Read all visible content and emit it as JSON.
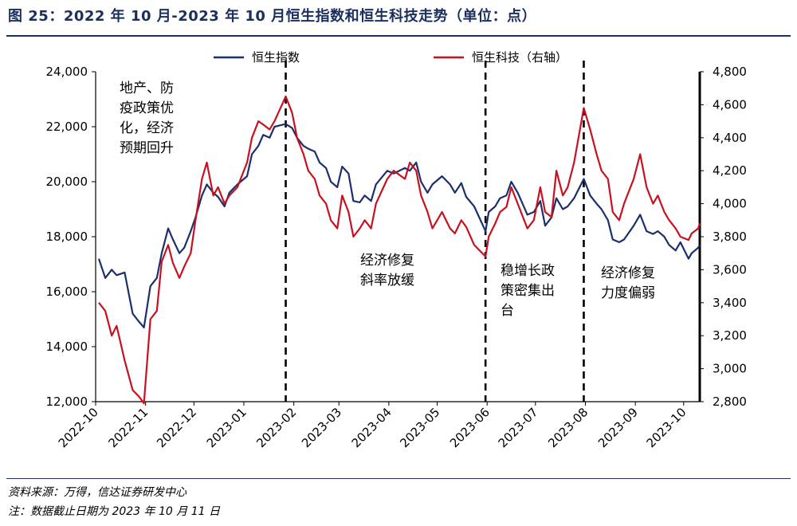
{
  "header": {
    "title": "图 25：2022 年 10 月-2023 年 10 月恒生指数和恒生科技走势（单位：点）"
  },
  "footer": {
    "source": "资料来源：万得，信达证券研发中心",
    "note": "注：数据截止日期为 2023 年 10 月 11 日"
  },
  "chart_data": {
    "type": "line",
    "title": "",
    "xlabel": "",
    "ylabel": "",
    "x_ticks": [
      "2022-10",
      "2022-11",
      "2022-12",
      "2023-01",
      "2023-02",
      "2023-03",
      "2023-04",
      "2023-05",
      "2023-06",
      "2023-07",
      "2023-08",
      "2023-09",
      "2023-10"
    ],
    "x_range": [
      "2022-10-01",
      "2023-10-11"
    ],
    "y_left": {
      "ticks": [
        "12,000",
        "14,000",
        "16,000",
        "18,000",
        "20,000",
        "22,000",
        "24,000"
      ],
      "range": [
        12000,
        24000
      ]
    },
    "y_right": {
      "ticks": [
        "2,800",
        "3,000",
        "3,200",
        "3,400",
        "3,600",
        "3,800",
        "4,000",
        "4,200",
        "4,400",
        "4,600",
        "4,800"
      ],
      "range": [
        2800,
        4800
      ]
    },
    "legend": {
      "placement": "top"
    },
    "grid": false,
    "series": [
      {
        "name": "恒生指数",
        "axis": "left",
        "color": "#1b2f6e",
        "points": [
          [
            "2022-10-03",
            17200
          ],
          [
            "2022-10-07",
            16500
          ],
          [
            "2022-10-11",
            16800
          ],
          [
            "2022-10-14",
            16600
          ],
          [
            "2022-10-19",
            16700
          ],
          [
            "2022-10-24",
            15200
          ],
          [
            "2022-10-28",
            14900
          ],
          [
            "2022-10-31",
            14700
          ],
          [
            "2022-11-04",
            16200
          ],
          [
            "2022-11-08",
            16500
          ],
          [
            "2022-11-11",
            17400
          ],
          [
            "2022-11-15",
            18300
          ],
          [
            "2022-11-18",
            17900
          ],
          [
            "2022-11-22",
            17400
          ],
          [
            "2022-11-25",
            17600
          ],
          [
            "2022-11-29",
            18200
          ],
          [
            "2022-12-02",
            18700
          ],
          [
            "2022-12-06",
            19500
          ],
          [
            "2022-12-09",
            19900
          ],
          [
            "2022-12-13",
            19600
          ],
          [
            "2022-12-16",
            19450
          ],
          [
            "2022-12-20",
            19100
          ],
          [
            "2022-12-23",
            19600
          ],
          [
            "2022-12-28",
            19900
          ],
          [
            "2023-01-03",
            20200
          ],
          [
            "2023-01-06",
            21000
          ],
          [
            "2023-01-10",
            21300
          ],
          [
            "2023-01-13",
            21700
          ],
          [
            "2023-01-17",
            21600
          ],
          [
            "2023-01-20",
            22000
          ],
          [
            "2023-01-27",
            22100
          ],
          [
            "2023-01-31",
            21950
          ],
          [
            "2023-02-03",
            21600
          ],
          [
            "2023-02-07",
            21300
          ],
          [
            "2023-02-10",
            21200
          ],
          [
            "2023-02-14",
            21100
          ],
          [
            "2023-02-17",
            20700
          ],
          [
            "2023-02-21",
            20500
          ],
          [
            "2023-02-24",
            20000
          ],
          [
            "2023-02-28",
            19800
          ],
          [
            "2023-03-03",
            20550
          ],
          [
            "2023-03-07",
            20300
          ],
          [
            "2023-03-10",
            19300
          ],
          [
            "2023-03-14",
            19250
          ],
          [
            "2023-03-17",
            19500
          ],
          [
            "2023-03-21",
            19300
          ],
          [
            "2023-03-24",
            19900
          ],
          [
            "2023-03-31",
            20400
          ],
          [
            "2023-04-04",
            20300
          ],
          [
            "2023-04-11",
            20500
          ],
          [
            "2023-04-14",
            20400
          ],
          [
            "2023-04-18",
            20700
          ],
          [
            "2023-04-21",
            20000
          ],
          [
            "2023-04-25",
            19600
          ],
          [
            "2023-04-28",
            19900
          ],
          [
            "2023-05-04",
            20200
          ],
          [
            "2023-05-09",
            19900
          ],
          [
            "2023-05-12",
            19600
          ],
          [
            "2023-05-16",
            19950
          ],
          [
            "2023-05-19",
            19450
          ],
          [
            "2023-05-24",
            19100
          ],
          [
            "2023-05-31",
            18200
          ],
          [
            "2023-06-02",
            18900
          ],
          [
            "2023-06-06",
            19100
          ],
          [
            "2023-06-09",
            19400
          ],
          [
            "2023-06-13",
            19500
          ],
          [
            "2023-06-16",
            20000
          ],
          [
            "2023-06-20",
            19600
          ],
          [
            "2023-06-26",
            18800
          ],
          [
            "2023-06-30",
            18900
          ],
          [
            "2023-07-04",
            19300
          ],
          [
            "2023-07-07",
            18400
          ],
          [
            "2023-07-11",
            18700
          ],
          [
            "2023-07-14",
            19400
          ],
          [
            "2023-07-18",
            19000
          ],
          [
            "2023-07-21",
            19100
          ],
          [
            "2023-07-25",
            19400
          ],
          [
            "2023-07-31",
            20100
          ],
          [
            "2023-08-04",
            19500
          ],
          [
            "2023-08-08",
            19200
          ],
          [
            "2023-08-11",
            19000
          ],
          [
            "2023-08-15",
            18600
          ],
          [
            "2023-08-18",
            17900
          ],
          [
            "2023-08-22",
            17800
          ],
          [
            "2023-08-25",
            17900
          ],
          [
            "2023-08-31",
            18400
          ],
          [
            "2023-09-04",
            18800
          ],
          [
            "2023-09-08",
            18200
          ],
          [
            "2023-09-12",
            18100
          ],
          [
            "2023-09-15",
            18200
          ],
          [
            "2023-09-19",
            18000
          ],
          [
            "2023-09-22",
            17700
          ],
          [
            "2023-09-26",
            17500
          ],
          [
            "2023-09-29",
            17800
          ],
          [
            "2023-10-04",
            17200
          ],
          [
            "2023-10-06",
            17400
          ],
          [
            "2023-10-10",
            17600
          ],
          [
            "2023-10-11",
            17700
          ]
        ]
      },
      {
        "name": "恒生科技（右轴）",
        "axis": "right",
        "color": "#c8101e",
        "points": [
          [
            "2022-10-03",
            3400
          ],
          [
            "2022-10-07",
            3350
          ],
          [
            "2022-10-11",
            3200
          ],
          [
            "2022-10-14",
            3260
          ],
          [
            "2022-10-19",
            3050
          ],
          [
            "2022-10-24",
            2870
          ],
          [
            "2022-10-28",
            2830
          ],
          [
            "2022-10-31",
            2790
          ],
          [
            "2022-11-04",
            3300
          ],
          [
            "2022-11-08",
            3350
          ],
          [
            "2022-11-11",
            3650
          ],
          [
            "2022-11-15",
            3750
          ],
          [
            "2022-11-18",
            3640
          ],
          [
            "2022-11-22",
            3550
          ],
          [
            "2022-11-25",
            3620
          ],
          [
            "2022-11-29",
            3700
          ],
          [
            "2022-12-02",
            3900
          ],
          [
            "2022-12-06",
            4150
          ],
          [
            "2022-12-09",
            4250
          ],
          [
            "2022-12-13",
            4050
          ],
          [
            "2022-12-16",
            4100
          ],
          [
            "2022-12-20",
            4000
          ],
          [
            "2022-12-23",
            4050
          ],
          [
            "2022-12-28",
            4100
          ],
          [
            "2023-01-03",
            4250
          ],
          [
            "2023-01-06",
            4400
          ],
          [
            "2023-01-10",
            4500
          ],
          [
            "2023-01-13",
            4480
          ],
          [
            "2023-01-17",
            4450
          ],
          [
            "2023-01-20",
            4500
          ],
          [
            "2023-01-27",
            4650
          ],
          [
            "2023-01-31",
            4550
          ],
          [
            "2023-02-03",
            4400
          ],
          [
            "2023-02-07",
            4300
          ],
          [
            "2023-02-10",
            4200
          ],
          [
            "2023-02-14",
            4150
          ],
          [
            "2023-02-17",
            4050
          ],
          [
            "2023-02-21",
            4000
          ],
          [
            "2023-02-24",
            3900
          ],
          [
            "2023-02-28",
            3850
          ],
          [
            "2023-03-03",
            4050
          ],
          [
            "2023-03-07",
            3950
          ],
          [
            "2023-03-10",
            3800
          ],
          [
            "2023-03-14",
            3850
          ],
          [
            "2023-03-17",
            3900
          ],
          [
            "2023-03-21",
            3850
          ],
          [
            "2023-03-24",
            4000
          ],
          [
            "2023-03-31",
            4150
          ],
          [
            "2023-04-04",
            4200
          ],
          [
            "2023-04-11",
            4150
          ],
          [
            "2023-04-14",
            4250
          ],
          [
            "2023-04-18",
            4200
          ],
          [
            "2023-04-21",
            4050
          ],
          [
            "2023-04-25",
            3950
          ],
          [
            "2023-04-28",
            3850
          ],
          [
            "2023-05-04",
            3950
          ],
          [
            "2023-05-09",
            3850
          ],
          [
            "2023-05-12",
            3820
          ],
          [
            "2023-05-16",
            3900
          ],
          [
            "2023-05-19",
            3860
          ],
          [
            "2023-05-24",
            3750
          ],
          [
            "2023-05-31",
            3680
          ],
          [
            "2023-06-02",
            3800
          ],
          [
            "2023-06-06",
            3880
          ],
          [
            "2023-06-09",
            3950
          ],
          [
            "2023-06-13",
            3980
          ],
          [
            "2023-06-16",
            4100
          ],
          [
            "2023-06-20",
            4000
          ],
          [
            "2023-06-26",
            3850
          ],
          [
            "2023-06-30",
            3900
          ],
          [
            "2023-07-04",
            4100
          ],
          [
            "2023-07-07",
            3950
          ],
          [
            "2023-07-11",
            3920
          ],
          [
            "2023-07-14",
            4200
          ],
          [
            "2023-07-18",
            4050
          ],
          [
            "2023-07-21",
            4100
          ],
          [
            "2023-07-25",
            4250
          ],
          [
            "2023-07-31",
            4580
          ],
          [
            "2023-08-04",
            4450
          ],
          [
            "2023-08-08",
            4300
          ],
          [
            "2023-08-11",
            4200
          ],
          [
            "2023-08-15",
            4150
          ],
          [
            "2023-08-18",
            3950
          ],
          [
            "2023-08-22",
            3900
          ],
          [
            "2023-08-25",
            4000
          ],
          [
            "2023-08-31",
            4150
          ],
          [
            "2023-09-04",
            4300
          ],
          [
            "2023-09-08",
            4100
          ],
          [
            "2023-09-12",
            4000
          ],
          [
            "2023-09-15",
            4050
          ],
          [
            "2023-09-19",
            3950
          ],
          [
            "2023-09-22",
            3900
          ],
          [
            "2023-09-26",
            3850
          ],
          [
            "2023-09-29",
            3800
          ],
          [
            "2023-10-04",
            3780
          ],
          [
            "2023-10-06",
            3820
          ],
          [
            "2023-10-10",
            3850
          ],
          [
            "2023-10-11",
            3880
          ]
        ]
      }
    ],
    "events": [
      {
        "date": "2023-01-27",
        "label": [
          "地产、防",
          "疫政策优",
          "化，经济",
          "预期回升"
        ]
      },
      {
        "date": "2023-05-31",
        "label": []
      },
      {
        "date": "2023-07-31",
        "label": []
      }
    ],
    "annotations": [
      {
        "id": "policy",
        "lines": [
          "地产、防",
          "疫政策优",
          "化，经济",
          "预期回升"
        ]
      },
      {
        "id": "slowdown",
        "lines": [
          "经济修复",
          "斜率放缓"
        ]
      },
      {
        "id": "stimulus",
        "lines": [
          "稳增长政",
          "策密集出",
          "台"
        ]
      },
      {
        "id": "weakening",
        "lines": [
          "经济修复",
          "力度偏弱"
        ]
      }
    ]
  }
}
